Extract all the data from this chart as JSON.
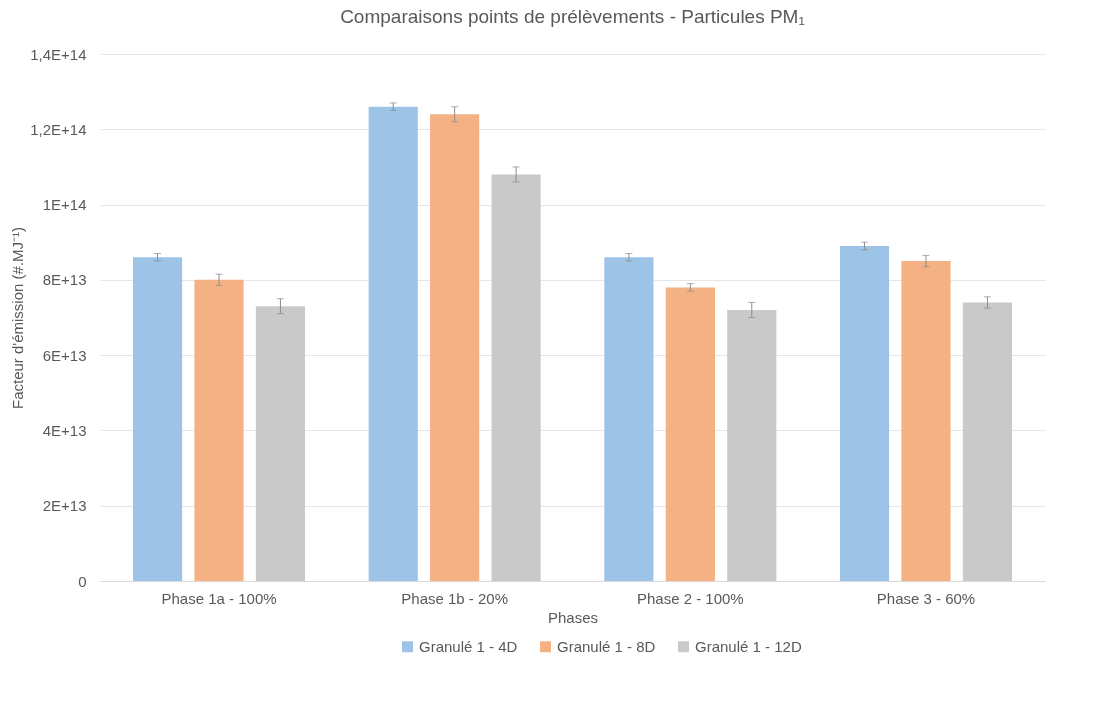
{
  "chart_data": {
    "type": "bar",
    "title": "Comparaisons points de prélèvements - Particules PM₁",
    "xlabel": "Phases",
    "ylabel": "Facteur d'émission (#.MJ⁻¹)",
    "categories": [
      "Phase 1a - 100%",
      "Phase 1b - 20%",
      "Phase 2 - 100%",
      "Phase 3 - 60%"
    ],
    "series": [
      {
        "name": "Granulé 1 - 4D",
        "color": "#9dc3e6",
        "values": [
          86000000000000.0,
          126000000000000.0,
          86000000000000.0,
          89000000000000.0
        ],
        "errors": [
          1000000000000.0,
          1000000000000.0,
          1000000000000.0,
          1000000000000.0
        ]
      },
      {
        "name": "Granulé 1 - 8D",
        "color": "#f4b183",
        "values": [
          80000000000000.0,
          124000000000000.0,
          78000000000000.0,
          85000000000000.0
        ],
        "errors": [
          1500000000000.0,
          2000000000000.0,
          1000000000000.0,
          1500000000000.0
        ]
      },
      {
        "name": "Granulé 1 - 12D",
        "color": "#c9c9c9",
        "values": [
          73000000000000.0,
          108000000000000.0,
          72000000000000.0,
          74000000000000.0
        ],
        "errors": [
          2000000000000.0,
          2000000000000.0,
          2000000000000.0,
          1500000000000.0
        ]
      }
    ],
    "ylim": [
      0,
      140000000000000.0
    ],
    "yticks": [
      0,
      {
        "value": 20000000000000.0,
        "label": "2E+13"
      },
      {
        "value": 40000000000000.0,
        "label": "4E+13"
      },
      {
        "value": 60000000000000.0,
        "label": "6E+13"
      },
      {
        "value": 80000000000000.0,
        "label": "8E+13"
      },
      {
        "value": 100000000000000.0,
        "label": "1E+14"
      },
      {
        "value": 120000000000000.0,
        "label": "1,2E+14"
      },
      {
        "value": 140000000000000.0,
        "label": "1,4E+14"
      }
    ],
    "grid": "y",
    "legend": "bottom"
  }
}
